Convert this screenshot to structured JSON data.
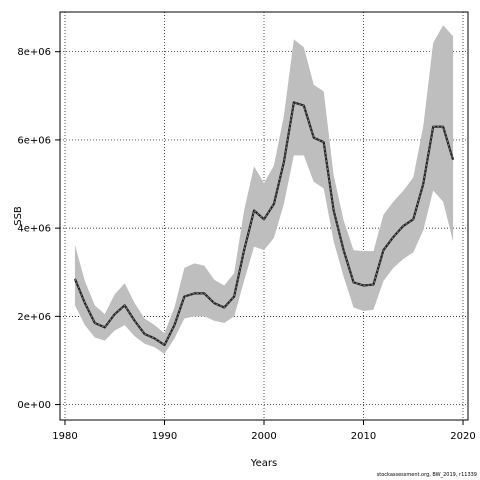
{
  "chart_data": {
    "type": "line",
    "xlabel": "Years",
    "ylabel": "SSB",
    "xlim": [
      1979.5,
      2020.5
    ],
    "ylim": [
      -350000,
      8900000
    ],
    "grid": true,
    "x_ticks": [
      1980,
      1990,
      2000,
      2010,
      2020
    ],
    "x_tick_labels": [
      "1980",
      "1990",
      "2000",
      "2010",
      "2020"
    ],
    "y_ticks": [
      0,
      2000000,
      4000000,
      6000000,
      8000000
    ],
    "y_tick_labels": [
      "0e+00",
      "2e+06",
      "4e+06",
      "6e+06",
      "8e+06"
    ],
    "band_color": "#bebebe",
    "line_color": "#222222",
    "series": [
      {
        "x": [
          1981,
          1982,
          1983,
          1984,
          1985,
          1986,
          1987,
          1988,
          1989,
          1990,
          1991,
          1992,
          1993,
          1994,
          1995,
          1996,
          1997,
          1998,
          1999,
          2000,
          2001,
          2002,
          2003,
          2004,
          2005,
          2006,
          2007,
          2008,
          2009,
          2010,
          2011,
          2012,
          2013,
          2014,
          2015,
          2016,
          2017,
          2018,
          2019
        ],
        "values": [
          2850000,
          2300000,
          1850000,
          1750000,
          2050000,
          2250000,
          1900000,
          1600000,
          1500000,
          1350000,
          1800000,
          2450000,
          2520000,
          2520000,
          2300000,
          2200000,
          2450000,
          3500000,
          4400000,
          4200000,
          4550000,
          5500000,
          6850000,
          6780000,
          6050000,
          5950000,
          4400000,
          3500000,
          2770000,
          2700000,
          2720000,
          3500000,
          3800000,
          4050000,
          4200000,
          5000000,
          6300000,
          6300000,
          5550000
        ],
        "lower": [
          2250000,
          1800000,
          1520000,
          1450000,
          1680000,
          1800000,
          1550000,
          1380000,
          1300000,
          1150000,
          1500000,
          1950000,
          2000000,
          2000000,
          1900000,
          1850000,
          2000000,
          2800000,
          3580000,
          3500000,
          3780000,
          4550000,
          5650000,
          5650000,
          5050000,
          4900000,
          3700000,
          2900000,
          2200000,
          2120000,
          2150000,
          2800000,
          3100000,
          3300000,
          3450000,
          3950000,
          4850000,
          4600000,
          3700000
        ],
        "upper": [
          3620000,
          2800000,
          2250000,
          2050000,
          2500000,
          2750000,
          2300000,
          1950000,
          1800000,
          1620000,
          2200000,
          3100000,
          3200000,
          3150000,
          2830000,
          2700000,
          2980000,
          4400000,
          5400000,
          5020000,
          5420000,
          6550000,
          8280000,
          8100000,
          7250000,
          7100000,
          5200000,
          4180000,
          3500000,
          3480000,
          3480000,
          4300000,
          4600000,
          4850000,
          5150000,
          6300000,
          8200000,
          8600000,
          8350000
        ]
      }
    ]
  },
  "footer": "stockassessment.org, BW_2019, r11339"
}
